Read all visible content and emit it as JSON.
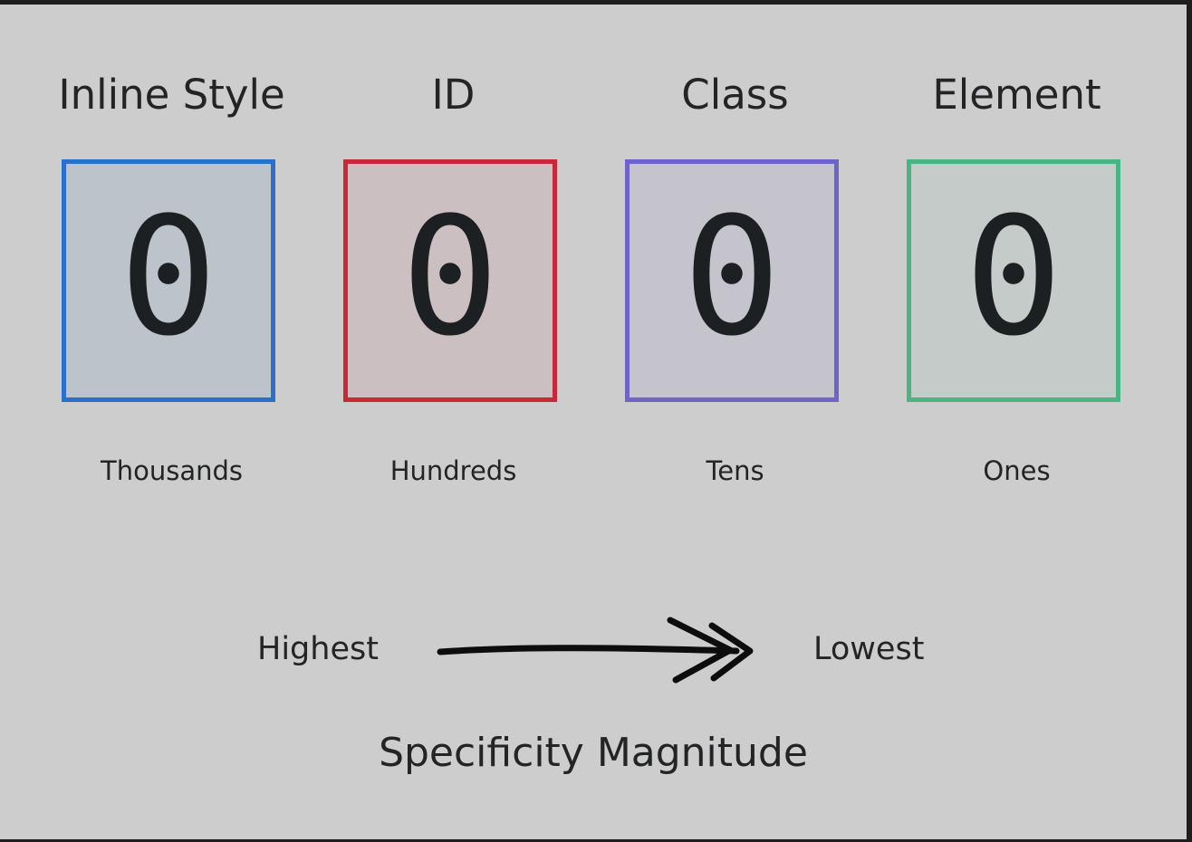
{
  "columns": [
    {
      "title": "Inline Style",
      "value": "0",
      "sublabel": "Thousands",
      "border_color": "#2a6fc9",
      "fill_color": "#bcc3ca"
    },
    {
      "title": "ID",
      "value": "0",
      "sublabel": "Hundreds",
      "border_color": "#c82939",
      "fill_color": "#cbbfc1"
    },
    {
      "title": "Class",
      "value": "0",
      "sublabel": "Tens",
      "border_color": "#6e63c7",
      "fill_color": "#c5c4cd"
    },
    {
      "title": "Element",
      "value": "0",
      "sublabel": "Ones",
      "border_color": "#4bb483",
      "fill_color": "#c4cbc8"
    }
  ],
  "scale": {
    "left_label": "Highest",
    "right_label": "Lowest",
    "arrow_icon": "double-chevron-arrow-right-icon"
  },
  "caption": "Specificity Magnitude"
}
